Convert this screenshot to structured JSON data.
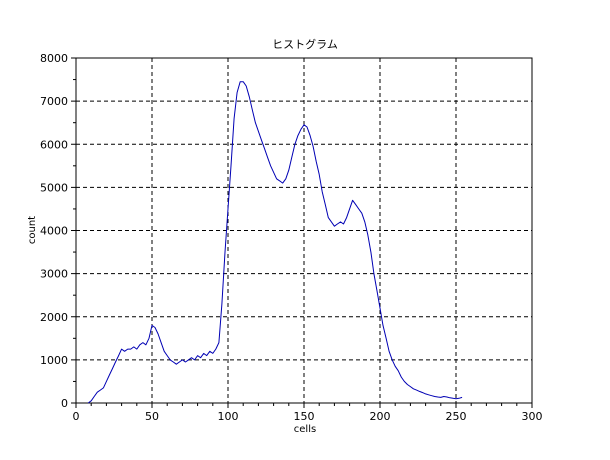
{
  "chart_data": {
    "type": "line",
    "title": "ヒストグラム",
    "xlabel": "cells",
    "ylabel": "count",
    "xlim": [
      0,
      300
    ],
    "ylim": [
      0,
      8000
    ],
    "grid": true,
    "grid_style": "dashed",
    "x_ticks": [
      0,
      50,
      100,
      150,
      200,
      250,
      300
    ],
    "y_ticks": [
      0,
      1000,
      2000,
      3000,
      4000,
      5000,
      6000,
      7000,
      8000
    ],
    "colors": {
      "series": "#0000b4",
      "grid": "#000000",
      "axes": "#000000"
    },
    "series": [
      {
        "x": [
          8,
          10,
          12,
          14,
          16,
          18,
          20,
          22,
          24,
          26,
          28,
          30,
          32,
          34,
          36,
          38,
          40,
          42,
          44,
          46,
          48,
          50,
          52,
          54,
          56,
          58,
          60,
          62,
          64,
          66,
          68,
          70,
          72,
          74,
          76,
          78,
          80,
          82,
          84,
          86,
          88,
          90,
          92,
          94,
          96,
          98,
          100,
          102,
          104,
          106,
          108,
          110,
          112,
          114,
          116,
          118,
          120,
          122,
          124,
          126,
          128,
          130,
          132,
          134,
          136,
          138,
          140,
          142,
          144,
          146,
          148,
          150,
          152,
          154,
          156,
          158,
          160,
          162,
          164,
          166,
          168,
          170,
          172,
          174,
          176,
          178,
          180,
          182,
          184,
          186,
          188,
          190,
          192,
          194,
          196,
          198,
          200,
          202,
          204,
          206,
          208,
          210,
          212,
          214,
          216,
          218,
          220,
          222,
          224,
          226,
          228,
          230,
          232,
          234,
          236,
          238,
          240,
          242,
          244,
          246,
          248,
          250,
          252,
          254
        ],
        "values": [
          0,
          50,
          150,
          250,
          300,
          350,
          500,
          650,
          800,
          950,
          1100,
          1250,
          1200,
          1250,
          1250,
          1300,
          1250,
          1350,
          1400,
          1350,
          1500,
          1800,
          1750,
          1600,
          1400,
          1200,
          1100,
          1000,
          950,
          900,
          950,
          1000,
          950,
          1000,
          1050,
          1000,
          1100,
          1050,
          1150,
          1100,
          1200,
          1150,
          1250,
          1400,
          2300,
          3500,
          4500,
          5500,
          6600,
          7200,
          7450,
          7450,
          7350,
          7100,
          6800,
          6500,
          6300,
          6100,
          5900,
          5700,
          5500,
          5350,
          5200,
          5150,
          5100,
          5200,
          5400,
          5700,
          6000,
          6200,
          6350,
          6450,
          6400,
          6200,
          5950,
          5600,
          5300,
          4900,
          4600,
          4300,
          4200,
          4100,
          4150,
          4200,
          4150,
          4300,
          4500,
          4700,
          4600,
          4500,
          4400,
          4200,
          3900,
          3500,
          3000,
          2600,
          2200,
          1800,
          1500,
          1200,
          1000,
          850,
          750,
          600,
          500,
          430,
          380,
          330,
          300,
          270,
          240,
          210,
          190,
          170,
          150,
          140,
          130,
          150,
          140,
          120,
          110,
          100,
          110,
          130
        ]
      }
    ]
  }
}
